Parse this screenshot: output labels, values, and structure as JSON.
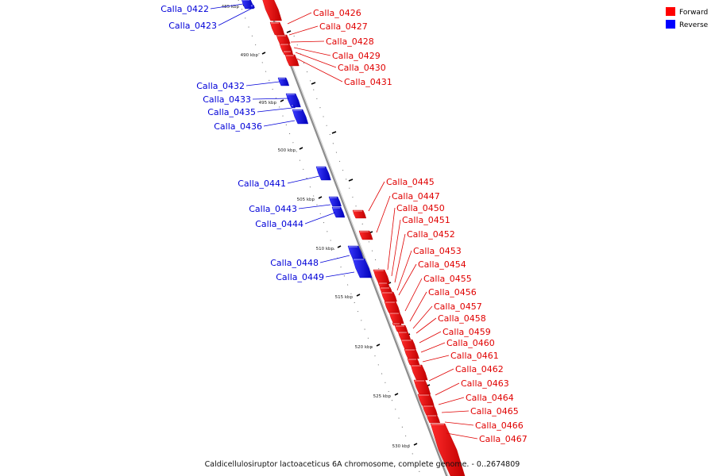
{
  "caption": "Caldicellulosiruptor lactoaceticus 6A chromosome, complete genome. - 0..2674809",
  "legend": [
    {
      "label": "Forward",
      "color": "#ff0000"
    },
    {
      "label": "Reverse",
      "color": "#0000ff"
    }
  ],
  "colors": {
    "forward": "#ff0000",
    "reverse": "#0000ff",
    "axis": "#8c8c8c"
  },
  "axis_ticks": [
    "485 kbp",
    "490 kbp",
    "495 kbp",
    "500 kbp",
    "505 kbp",
    "510 kbp",
    "515 kbp",
    "520 kbp",
    "525 kbp",
    "530 kbp"
  ],
  "reverse_genes": [
    "Calla_0422",
    "Calla_0423",
    "Calla_0432",
    "Calla_0433",
    "Calla_0435",
    "Calla_0436",
    "Calla_0441",
    "Calla_0443",
    "Calla_0444",
    "Calla_0448",
    "Calla_0449"
  ],
  "forward_genes": [
    "Calla_0426",
    "Calla_0427",
    "Calla_0428",
    "Calla_0429",
    "Calla_0430",
    "Calla_0431",
    "Calla_0445",
    "Calla_0447",
    "Calla_0450",
    "Calla_0451",
    "Calla_0452",
    "Calla_0453",
    "Calla_0454",
    "Calla_0455",
    "Calla_0456",
    "Calla_0457",
    "Calla_0458",
    "Calla_0459",
    "Calla_0460",
    "Calla_0461",
    "Calla_0462",
    "Calla_0463",
    "Calla_0464",
    "Calla_0465",
    "Calla_0466",
    "Calla_0467"
  ]
}
